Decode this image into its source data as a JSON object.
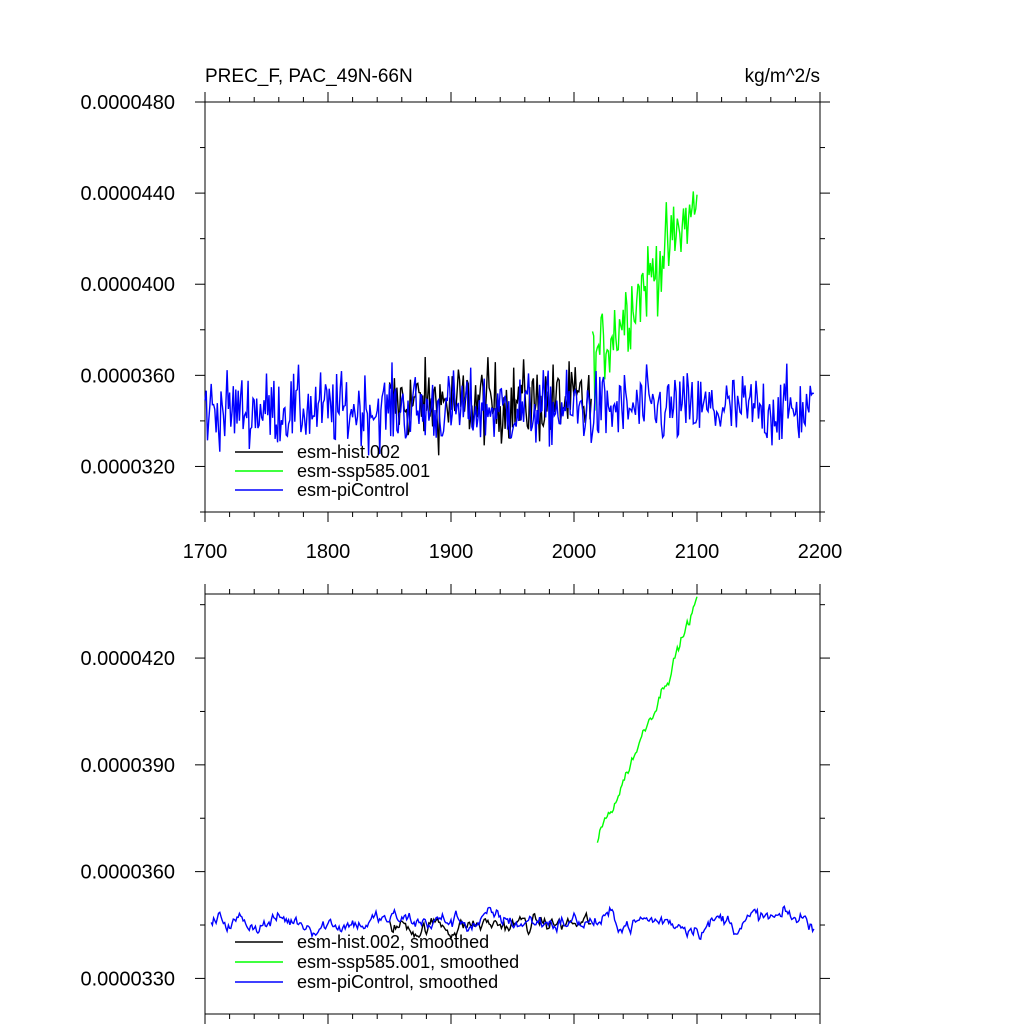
{
  "chart_data": [
    {
      "type": "line",
      "title": "PREC_F, PAC_49N-66N",
      "units": "kg/m^2/s",
      "xlim": [
        1700,
        2200
      ],
      "ylim": [
        3e-05,
        4.8e-05
      ],
      "x_ticks": [
        "1700",
        "1800",
        "1900",
        "2000",
        "2100",
        "2200"
      ],
      "y_ticks": [
        "0.0000320",
        "0.0000360",
        "0.0000400",
        "0.0000440",
        "0.0000480"
      ],
      "legend_position": "bottom-left",
      "series": [
        {
          "name": "esm-hist.002",
          "color": "#000000",
          "x_start": 1850,
          "x_end": 2014,
          "mean": 3.48e-05,
          "noise": 1.2e-06,
          "trend": 0.0
        },
        {
          "name": "esm-ssp585.001",
          "color": "#00ff00",
          "x_start": 2015,
          "x_end": 2100,
          "start": 3.65e-05,
          "end": 4.35e-05,
          "noise": 1.2e-06
        },
        {
          "name": "esm-piControl",
          "color": "#0000ff",
          "x_start": 1700,
          "x_end": 2195,
          "mean": 3.45e-05,
          "noise": 1.1e-06,
          "trend": 0.0
        }
      ]
    },
    {
      "type": "line",
      "xlim": [
        1700,
        2200
      ],
      "ylim": [
        3.2e-05,
        4.38e-05
      ],
      "y_ticks": [
        "0.0000330",
        "0.0000360",
        "0.0000390",
        "0.0000420"
      ],
      "legend_position": "bottom-left",
      "series": [
        {
          "name": "esm-hist.002, smoothed",
          "color": "#000000",
          "x_start": 1850,
          "x_end": 2014,
          "mean": 3.45e-05,
          "noise": 4e-07
        },
        {
          "name": "esm-ssp585.001, smoothed",
          "color": "#00ff00",
          "x_start": 2019,
          "x_end": 2100,
          "start": 3.68e-05,
          "end": 4.36e-05,
          "noise": 3e-07
        },
        {
          "name": "esm-piControl, smoothed",
          "color": "#0000ff",
          "x_start": 1705,
          "x_end": 2195,
          "mean": 3.46e-05,
          "noise": 4e-07
        }
      ]
    }
  ]
}
